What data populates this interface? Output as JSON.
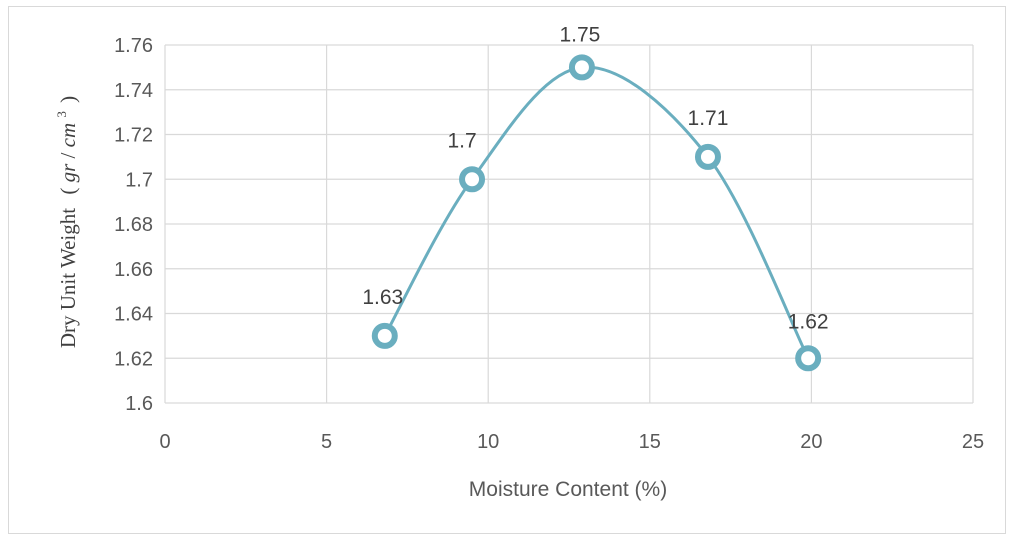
{
  "chart_data": {
    "type": "scatter",
    "xlabel": "Moisture Content (%)",
    "ylabel": {
      "text": "Dry Unit Weight",
      "unit_prefix": "(",
      "unit_gr": "gr",
      "unit_slash": "/",
      "unit_cm": "cm",
      "unit_exp": "3",
      "unit_suffix": ")"
    },
    "xlim": [
      0,
      25
    ],
    "ylim": [
      1.6,
      1.76
    ],
    "x_ticks": [
      "0",
      "5",
      "10",
      "15",
      "20",
      "25"
    ],
    "y_ticks": [
      "1.6",
      "1.62",
      "1.64",
      "1.66",
      "1.68",
      "1.7",
      "1.72",
      "1.74",
      "1.76"
    ],
    "grid": true,
    "smooth_line": true,
    "series": [
      {
        "points": [
          {
            "x": 6.8,
            "y": 1.63,
            "label": "1.63"
          },
          {
            "x": 9.5,
            "y": 1.7,
            "label": "1.7"
          },
          {
            "x": 12.9,
            "y": 1.75,
            "label": "1.75"
          },
          {
            "x": 16.8,
            "y": 1.71,
            "label": "1.71"
          },
          {
            "x": 19.9,
            "y": 1.62,
            "label": "1.62"
          }
        ]
      }
    ],
    "colors": {
      "line": "#6aaebf",
      "marker_fill": "#ffffff",
      "marker_stroke": "#6aaebf"
    }
  }
}
